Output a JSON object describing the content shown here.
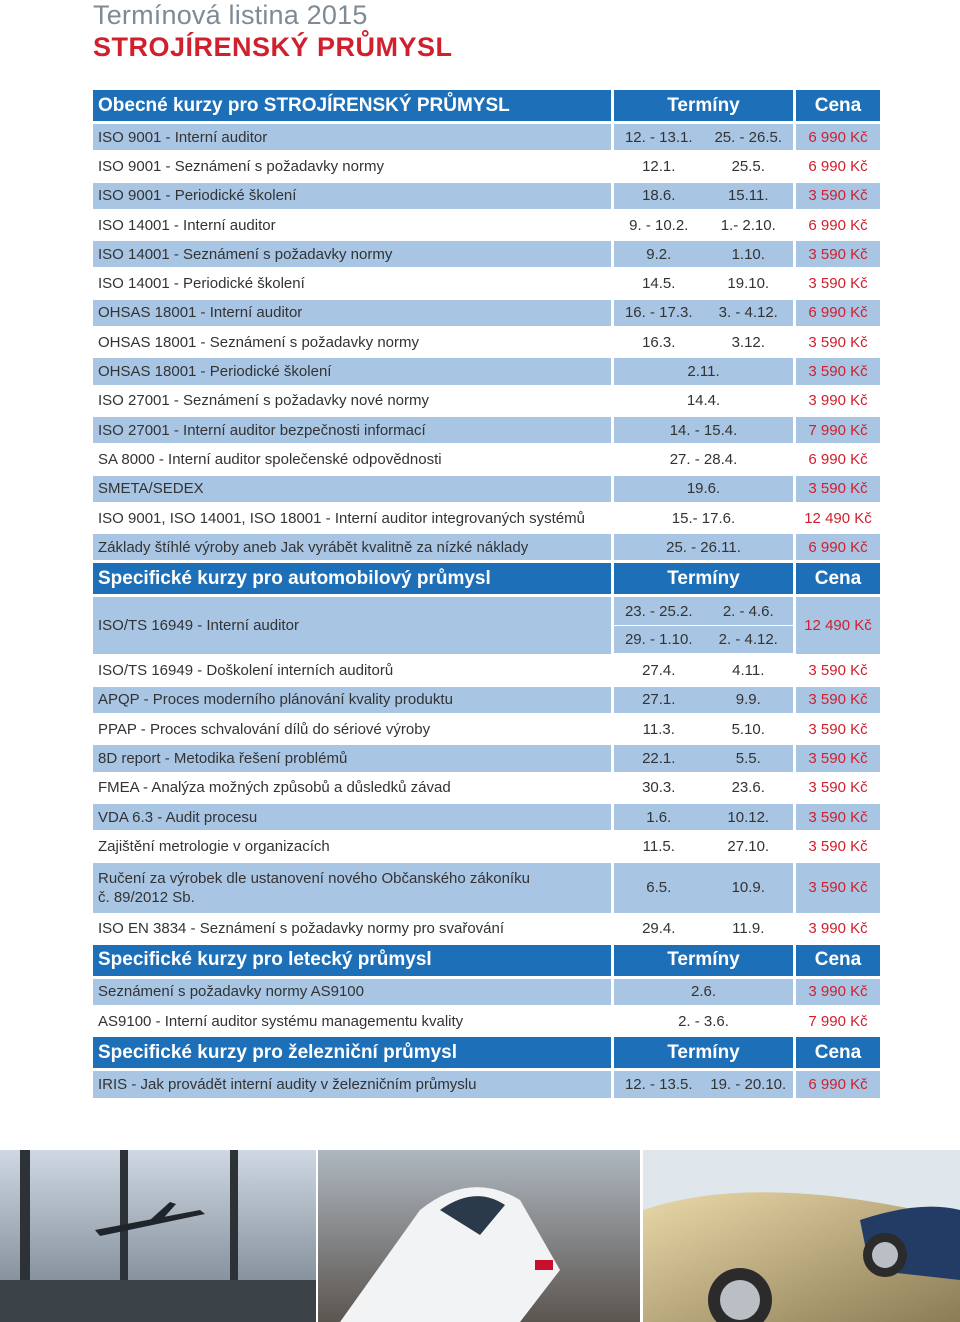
{
  "header": {
    "title": "Termínová listina 2015",
    "subtitle": "STROJÍRENSKÝ PRŮMYSL"
  },
  "sections": [
    {
      "title": "Obecné kurzy pro STROJÍRENSKÝ PRŮMYSL",
      "dates_header": "Termíny",
      "price_header": "Cena",
      "rows": [
        {
          "name": "ISO 9001 - Interní auditor",
          "dates": [
            "12. - 13.1.",
            "25. - 26.5."
          ],
          "price": "6 990 Kč"
        },
        {
          "name": "ISO 9001 - Seznámení s požadavky normy",
          "dates": [
            "12.1.",
            "25.5."
          ],
          "price": "6 990 Kč"
        },
        {
          "name": "ISO 9001 - Periodické školení",
          "dates": [
            "18.6.",
            "15.11."
          ],
          "price": "3 590 Kč"
        },
        {
          "name": "ISO 14001 - Interní auditor",
          "dates": [
            "9. - 10.2.",
            "1.- 2.10."
          ],
          "price": "6 990 Kč"
        },
        {
          "name": "ISO 14001 - Seznámení s požadavky normy",
          "dates": [
            "9.2.",
            "1.10."
          ],
          "price": "3 590 Kč"
        },
        {
          "name": "ISO 14001 - Periodické školení",
          "dates": [
            "14.5.",
            "19.10."
          ],
          "price": "3 590 Kč"
        },
        {
          "name": "OHSAS 18001 - Interní auditor",
          "dates": [
            "16. - 17.3.",
            "3. - 4.12."
          ],
          "price": "6 990 Kč"
        },
        {
          "name": "OHSAS 18001 - Seznámení s požadavky normy",
          "dates": [
            "16.3.",
            "3.12."
          ],
          "price": "3 590 Kč"
        },
        {
          "name": "OHSAS 18001 - Periodické školení",
          "dates": [
            "2.11."
          ],
          "price": "3 590 Kč"
        },
        {
          "name": "ISO 27001 - Seznámení s požadavky nové normy",
          "dates": [
            "14.4."
          ],
          "price": "3 990 Kč"
        },
        {
          "name": "ISO 27001 - Interní auditor bezpečnosti informací",
          "dates": [
            "14. - 15.4."
          ],
          "price": "7 990 Kč"
        },
        {
          "name": "SA 8000 - Interní auditor společenské odpovědnosti",
          "dates": [
            "27. - 28.4."
          ],
          "price": "6 990 Kč"
        },
        {
          "name": "SMETA/SEDEX",
          "dates": [
            "19.6."
          ],
          "price": "3 590 Kč"
        },
        {
          "name": "ISO 9001, ISO 14001, ISO 18001 - Interní auditor integrovaných systémů",
          "dates": [
            "15.- 17.6."
          ],
          "price": "12 490 Kč"
        },
        {
          "name": "Základy štíhlé výroby aneb Jak vyrábět kvalitně za nízké náklady",
          "dates": [
            "25. - 26.11."
          ],
          "price": "6 990 Kč"
        }
      ]
    },
    {
      "title": "Specifické kurzy pro automobilový průmysl",
      "dates_header": "Termíny",
      "price_header": "Cena",
      "rows": [
        {
          "name": "ISO/TS 16949 - Interní auditor",
          "dates": [
            "23. - 25.2.",
            "2. - 4.6.",
            "29. - 1.10.",
            "2. - 4.12."
          ],
          "price": "12 490 Kč"
        },
        {
          "name": "ISO/TS 16949 - Doškolení interních auditorů",
          "dates": [
            "27.4.",
            "4.11."
          ],
          "price": "3 590 Kč"
        },
        {
          "name": "APQP - Proces moderního plánování kvality produktu",
          "dates": [
            "27.1.",
            "9.9."
          ],
          "price": "3 590 Kč"
        },
        {
          "name": "PPAP - Proces schvalování dílů do sériové výroby",
          "dates": [
            "11.3.",
            "5.10."
          ],
          "price": "3 590 Kč"
        },
        {
          "name": "8D report - Metodika řešení problémů",
          "dates": [
            "22.1.",
            "5.5."
          ],
          "price": "3 590 Kč"
        },
        {
          "name": "FMEA - Analýza možných způsobů a důsledků závad",
          "dates": [
            "30.3.",
            "23.6."
          ],
          "price": "3 590 Kč"
        },
        {
          "name": "VDA 6.3 - Audit procesu",
          "dates": [
            "1.6.",
            "10.12."
          ],
          "price": "3 590 Kč"
        },
        {
          "name": "Zajištění metrologie v organizacích",
          "dates": [
            "11.5.",
            "27.10."
          ],
          "price": "3 590 Kč"
        },
        {
          "name": [
            "Ručení za výrobek dle ustanovení nového Občanského zákoníku",
            "č. 89/2012 Sb."
          ],
          "dates": [
            "6.5.",
            "10.9."
          ],
          "price": "3 590 Kč"
        },
        {
          "name": "ISO EN 3834 - Seznámení s požadavky normy pro svařování",
          "dates": [
            "29.4.",
            "11.9."
          ],
          "price": "3 990 Kč"
        }
      ]
    },
    {
      "title": "Specifické kurzy pro letecký průmysl",
      "dates_header": "Termíny",
      "price_header": "Cena",
      "rows": [
        {
          "name": "Seznámení s požadavky normy AS9100",
          "dates": [
            "2.6."
          ],
          "price": "3 990 Kč"
        },
        {
          "name": "AS9100 - Interní auditor systému managementu kvality",
          "dates": [
            "2. - 3.6."
          ],
          "price": "7 990 Kč"
        }
      ]
    },
    {
      "title": "Specifické kurzy pro železniční průmysl",
      "dates_header": "Termíny",
      "price_header": "Cena",
      "rows": [
        {
          "name": "IRIS - Jak provádět interní audity v železničním průmyslu",
          "dates": [
            "12. - 13.5.",
            "19. - 20.10."
          ],
          "price": "6 990 Kč"
        }
      ]
    }
  ]
}
